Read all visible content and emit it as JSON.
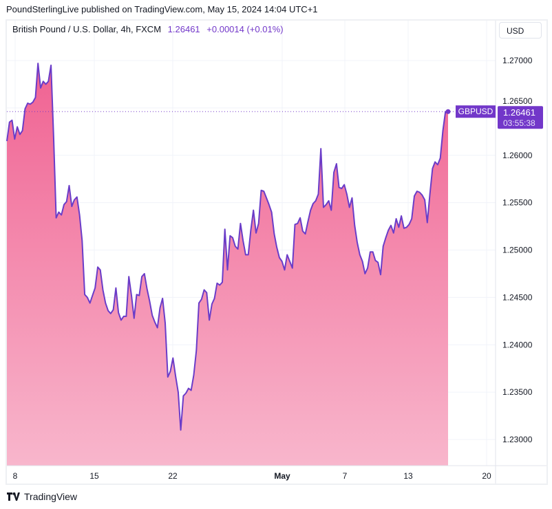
{
  "header": {
    "published": "PoundSterlingLive published on TradingView.com, May 15, 2024 14:04 UTC+1"
  },
  "legend": {
    "symbol": "British Pound / U.S. Dollar, 4h, FXCM",
    "price": "1.26461",
    "change": "+0.00014 (+0.01%)"
  },
  "currency_button": "USD",
  "footer": {
    "brand": "TradingView"
  },
  "colors": {
    "line": "#6a3cc8",
    "fill_top": "#f06292",
    "fill_bottom": "#f8b6cc",
    "accent": "#7237c9"
  },
  "chart_data": {
    "type": "area",
    "series": [
      {
        "name": "GBPUSD",
        "values": [
          1.2615,
          1.2635,
          1.2637,
          1.2617,
          1.263,
          1.2622,
          1.2626,
          1.2649,
          1.2655,
          1.2654,
          1.2656,
          1.2661,
          1.2697,
          1.2671,
          1.2678,
          1.2675,
          1.2678,
          1.2695,
          1.2619,
          1.2534,
          1.254,
          1.2537,
          1.2548,
          1.2551,
          1.2568,
          1.2546,
          1.2553,
          1.2556,
          1.2537,
          1.251,
          1.2453,
          1.245,
          1.2444,
          1.2452,
          1.246,
          1.2482,
          1.2479,
          1.2458,
          1.2444,
          1.2436,
          1.2433,
          1.2437,
          1.246,
          1.2434,
          1.2426,
          1.243,
          1.243,
          1.2472,
          1.2452,
          1.2428,
          1.2453,
          1.2452,
          1.2472,
          1.2475,
          1.2459,
          1.2446,
          1.2431,
          1.2424,
          1.2418,
          1.2439,
          1.2449,
          1.2423,
          1.2366,
          1.2372,
          1.2386,
          1.2367,
          1.235,
          1.231,
          1.2346,
          1.2349,
          1.2354,
          1.2352,
          1.2368,
          1.2394,
          1.2444,
          1.2448,
          1.2458,
          1.2455,
          1.2426,
          1.2443,
          1.2449,
          1.2465,
          1.2463,
          1.2466,
          1.2522,
          1.2479,
          1.2515,
          1.2513,
          1.2504,
          1.2501,
          1.2528,
          1.251,
          1.2495,
          1.2495,
          1.2521,
          1.2542,
          1.2518,
          1.2528,
          1.2563,
          1.2562,
          1.2555,
          1.2548,
          1.254,
          1.2517,
          1.2503,
          1.2492,
          1.2488,
          1.2479,
          1.2495,
          1.2488,
          1.2481,
          1.2527,
          1.2528,
          1.2534,
          1.252,
          1.2517,
          1.253,
          1.2542,
          1.2549,
          1.2552,
          1.2559,
          1.2607,
          1.2545,
          1.2548,
          1.2552,
          1.2542,
          1.2582,
          1.2591,
          1.2566,
          1.2565,
          1.2569,
          1.2559,
          1.2545,
          1.2555,
          1.2526,
          1.2508,
          1.2495,
          1.2488,
          1.2475,
          1.2481,
          1.2498,
          1.2498,
          1.2489,
          1.2487,
          1.2474,
          1.2504,
          1.2513,
          1.2521,
          1.2526,
          1.2518,
          1.2533,
          1.2524,
          1.2536,
          1.2523,
          1.2524,
          1.2527,
          1.2533,
          1.2557,
          1.2562,
          1.2561,
          1.2558,
          1.2553,
          1.2529,
          1.2559,
          1.2586,
          1.2593,
          1.259,
          1.2597,
          1.2626,
          1.2646,
          1.26461
        ]
      }
    ],
    "y_ticks": [
      "1.27000",
      "1.26500",
      "1.26000",
      "1.25500",
      "1.25000",
      "1.24500",
      "1.24000",
      "1.23500",
      "1.23000"
    ],
    "y_tick_values": [
      1.27,
      1.265,
      1.26,
      1.255,
      1.25,
      1.245,
      1.24,
      1.235,
      1.23
    ],
    "ylim": [
      1.2275,
      1.2725
    ],
    "x_ticks": [
      {
        "label": "8",
        "bold": false
      },
      {
        "label": "15",
        "bold": false
      },
      {
        "label": "22",
        "bold": false
      },
      {
        "label": "May",
        "bold": true
      },
      {
        "label": "7",
        "bold": false
      },
      {
        "label": "13",
        "bold": false
      },
      {
        "label": "20",
        "bold": false
      }
    ],
    "last_label": {
      "symbol": "GBPUSD",
      "price": "1.26461",
      "countdown": "03:55:38"
    },
    "grid": true
  }
}
